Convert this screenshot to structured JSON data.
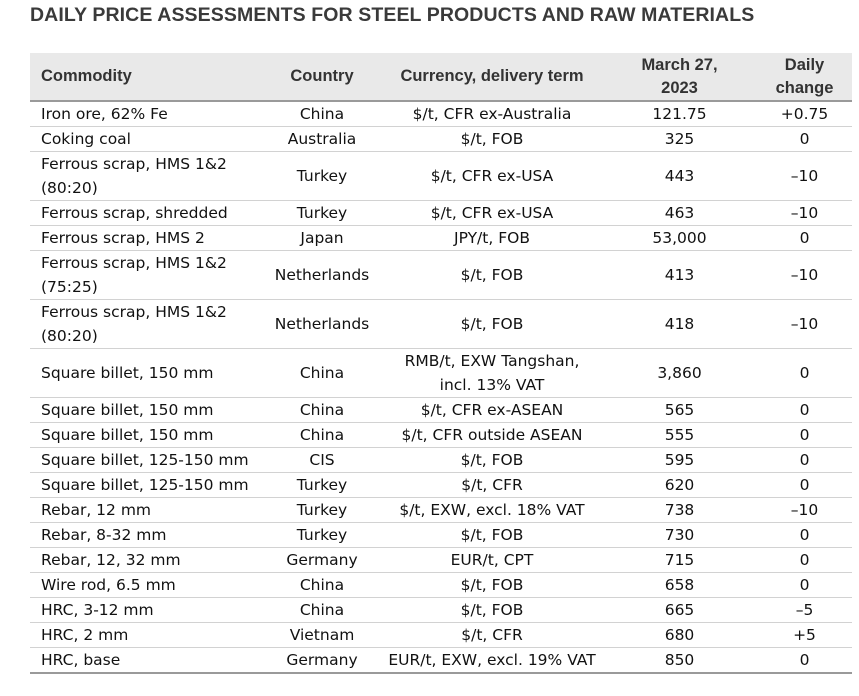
{
  "title": "DAILY PRICE ASSESSMENTS FOR STEEL PRODUCTS AND RAW MATERIALS",
  "table": {
    "headers": [
      "Commodity",
      "Country",
      "Currency, delivery term"
    ],
    "date_header": {
      "line1": "March 27,",
      "line2": "2023"
    },
    "change_header": {
      "line1": "Daily",
      "line2": "change"
    },
    "rows": [
      {
        "commodity": "Iron ore, 62% Fe",
        "country": "China",
        "term": "$/t, CFR ex-Australia",
        "price": "121.75",
        "change": "+0.75"
      },
      {
        "commodity": "Coking coal",
        "country": "Australia",
        "term": "$/t, FOB",
        "price": "325",
        "change": "0"
      },
      {
        "commodity": "Ferrous scrap, HMS 1&2 (80:20)",
        "country": "Turkey",
        "term": "$/t, CFR ex-USA",
        "price": "443",
        "change": "–10"
      },
      {
        "commodity": "Ferrous scrap, shredded",
        "country": "Turkey",
        "term": "$/t, CFR ex-USA",
        "price": "463",
        "change": "–10"
      },
      {
        "commodity": "Ferrous scrap, HMS 2",
        "country": "Japan",
        "term": "JPY/t, FOB",
        "price": "53,000",
        "change": "0"
      },
      {
        "commodity": "Ferrous scrap, HMS 1&2 (75:25)",
        "country": "Netherlands",
        "term": "$/t, FOB",
        "price": "413",
        "change": "–10"
      },
      {
        "commodity": "Ferrous scrap, HMS 1&2 (80:20)",
        "country": "Netherlands",
        "term": "$/t, FOB",
        "price": "418",
        "change": "–10"
      },
      {
        "commodity": "Square billet, 150 mm",
        "country": "China",
        "term": "RMB/t, EXW Tangshan, incl. 13% VAT",
        "price": "3,860",
        "change": "0"
      },
      {
        "commodity": "Square billet, 150 mm",
        "country": "China",
        "term": "$/t, CFR ex-ASEAN",
        "price": "565",
        "change": "0"
      },
      {
        "commodity": "Square billet, 150 mm",
        "country": "China",
        "term": "$/t, CFR outside ASEAN",
        "price": "555",
        "change": "0"
      },
      {
        "commodity": "Square billet, 125-150 mm",
        "country": "CIS",
        "term": "$/t, FOB",
        "price": "595",
        "change": "0"
      },
      {
        "commodity": "Square billet, 125-150 mm",
        "country": "Turkey",
        "term": "$/t, CFR",
        "price": "620",
        "change": "0"
      },
      {
        "commodity": "Rebar, 12 mm",
        "country": "Turkey",
        "term": "$/t, EXW, excl. 18% VAT",
        "price": "738",
        "change": "–10"
      },
      {
        "commodity": "Rebar, 8-32 mm",
        "country": "Turkey",
        "term": "$/t, FOB",
        "price": "730",
        "change": "0"
      },
      {
        "commodity": "Rebar, 12, 32 mm",
        "country": "Germany",
        "term": "EUR/t, CPT",
        "price": "715",
        "change": "0"
      },
      {
        "commodity": "Wire rod, 6.5 mm",
        "country": "China",
        "term": "$/t, FOB",
        "price": "658",
        "change": "0"
      },
      {
        "commodity": "HRC, 3-12 mm",
        "country": "China",
        "term": "$/t, FOB",
        "price": "665",
        "change": "–5"
      },
      {
        "commodity": "HRC, 2 mm",
        "country": "Vietnam",
        "term": "$/t, CFR",
        "price": "680",
        "change": "+5"
      },
      {
        "commodity": "HRC, base",
        "country": "Germany",
        "term": "EUR/t, EXW, excl. 19% VAT",
        "price": "850",
        "change": "0"
      }
    ]
  }
}
